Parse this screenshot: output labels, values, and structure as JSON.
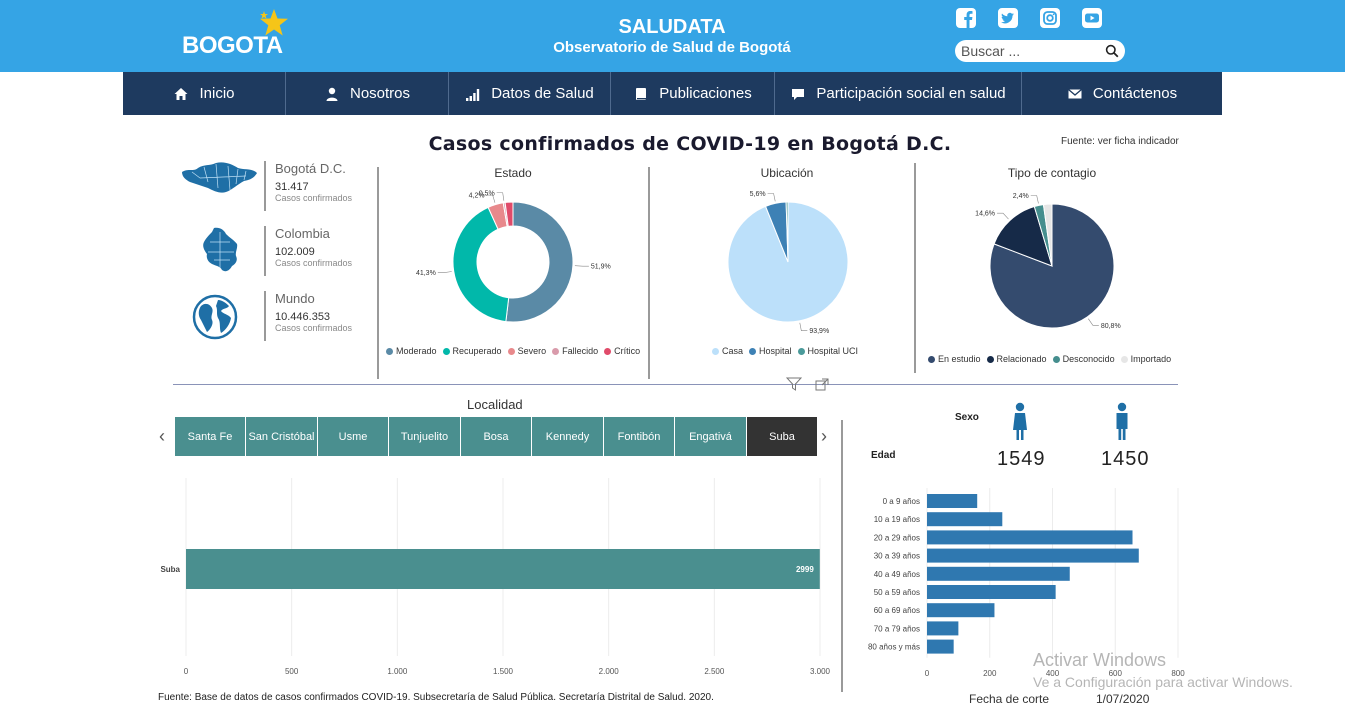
{
  "header": {
    "logo_text": "BOGOTA",
    "title": "SALUDATA",
    "subtitle": "Observatorio de Salud de Bogotá",
    "search_placeholder": "Buscar ..."
  },
  "nav": [
    {
      "label": "Inicio",
      "icon": "home-icon"
    },
    {
      "label": "Nosotros",
      "icon": "user-icon"
    },
    {
      "label": "Datos de Salud",
      "icon": "signal-bars-icon"
    },
    {
      "label": "Publicaciones",
      "icon": "book-icon"
    },
    {
      "label": "Participación social en salud",
      "icon": "speech-bubble-icon"
    },
    {
      "label": "Contáctenos",
      "icon": "envelope-icon"
    }
  ],
  "report": {
    "title": "Casos confirmados de COVID-19 en Bogotá D.C.",
    "source_link": "Fuente: ver ficha indicador",
    "summaries": [
      {
        "name": "Bogotá D.C.",
        "value": "31.417",
        "caption": "Casos confirmados",
        "icon": "bogota-map-icon"
      },
      {
        "name": "Colombia",
        "value": "102.009",
        "caption": "Casos confirmados",
        "icon": "colombia-map-icon"
      },
      {
        "name": "Mundo",
        "value": "10.446.353",
        "caption": "Casos confirmados",
        "icon": "globe-icon"
      }
    ]
  },
  "colors": {
    "moderado": "#5a8aa6",
    "recuperado": "#01b8aa",
    "severo": "#e8898c",
    "fallecido": "#d99bab",
    "critico": "#e04b6a",
    "casa": "#bce0fa",
    "hospital": "#3d81b5",
    "hospital_uci": "#4a9a9a",
    "en_estudio": "#344b6e",
    "relacionado": "#162a48",
    "desconocido": "#458e8e",
    "importado": "#e6e6e6",
    "localidad_bar": "#4a8f8f",
    "edad_bar": "#2f78b0"
  },
  "chart_data": [
    {
      "type": "pie",
      "title": "Estado",
      "categories": [
        "Moderado",
        "Recuperado",
        "Severo",
        "Fallecido",
        "Crítico"
      ],
      "values": [
        51.9,
        41.3,
        4.2,
        0.5,
        2.1
      ],
      "labels": [
        "51,9%",
        "41,3%",
        "4,2%",
        "0,5%",
        ""
      ],
      "legend": "bottom"
    },
    {
      "type": "pie",
      "title": "Ubicación",
      "categories": [
        "Casa",
        "Hospital",
        "Hospital UCI"
      ],
      "values": [
        93.9,
        5.6,
        0.5
      ],
      "labels": [
        "93,9%",
        "5,6%",
        ""
      ],
      "legend": "bottom"
    },
    {
      "type": "pie",
      "title": "Tipo de contagio",
      "categories": [
        "En estudio",
        "Relacionado",
        "Desconocido",
        "Importado"
      ],
      "values": [
        80.8,
        14.6,
        2.4,
        2.2
      ],
      "labels": [
        "80,8%",
        "14,6%",
        "2,4%",
        ""
      ],
      "legend": "bottom"
    },
    {
      "type": "bar",
      "title": "Localidad",
      "orientation": "horizontal",
      "categories": [
        "Suba"
      ],
      "values": [
        2999
      ],
      "data_labels": [
        "2999"
      ],
      "xlim": [
        0,
        3000
      ],
      "xticks": [
        "0",
        "500",
        "1.000",
        "1.500",
        "2.000",
        "2.500",
        "3.000"
      ],
      "grid": true
    },
    {
      "type": "bar",
      "title": "Edad",
      "orientation": "horizontal",
      "categories": [
        "0 a 9 años",
        "10 a 19 años",
        "20 a 29 años",
        "30 a 39 años",
        "40 a 49 años",
        "50 a 59 años",
        "60 a 69 años",
        "70 a 79 años",
        "80 años y más"
      ],
      "values": [
        160,
        240,
        655,
        675,
        455,
        410,
        215,
        100,
        85
      ],
      "xlim": [
        0,
        800
      ],
      "xticks": [
        "0",
        "200",
        "400",
        "600",
        "800"
      ],
      "grid": true
    }
  ],
  "localidad": {
    "title": "Localidad",
    "tabs": [
      "Santa Fe",
      "San Cristóbal",
      "Usme",
      "Tunjuelito",
      "Bosa",
      "Kennedy",
      "Fontibón",
      "Engativá",
      "Suba"
    ],
    "active": "Suba",
    "prev_arrow": "‹",
    "next_arrow": "›"
  },
  "sexo": {
    "label": "Sexo",
    "edad_label": "Edad",
    "female": "1549",
    "male": "1450"
  },
  "footer": {
    "note": "Fuente: Base de datos de casos confirmados COVID-19. Subsecretaría de Salud Pública. Secretaría Distrital de Salud. 2020.",
    "cut_label": "Fecha de corte",
    "cut_value": "1/07/2020",
    "watermark_1": "Activar Windows",
    "watermark_2": "Ve a Configuración para activar Windows."
  }
}
